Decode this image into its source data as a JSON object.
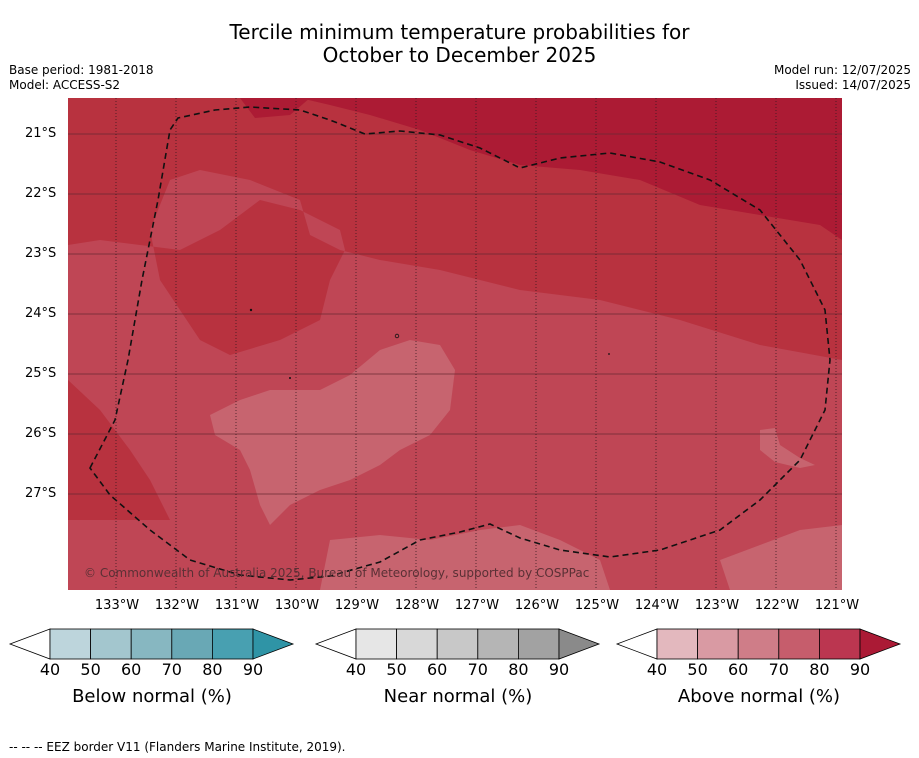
{
  "title_line1": "Tercile minimum temperature probabilities for",
  "title_line2": "October to December 2025",
  "base_period": "Base period: 1981-2018",
  "model": "Model: ACCESS-S2",
  "model_run": "Model run: 12/07/2025",
  "issued": "Issued: 14/07/2025",
  "copyright": "© Commonwealth of Australia 2025, Bureau of Meteorology, supported by COSPPac",
  "lat_labels": [
    "21°S",
    "22°S",
    "23°S",
    "24°S",
    "25°S",
    "26°S",
    "27°S"
  ],
  "lon_labels": [
    "133°W",
    "132°W",
    "131°W",
    "130°W",
    "129°W",
    "128°W",
    "127°W",
    "126°W",
    "125°W",
    "124°W",
    "123°W",
    "122°W",
    "121°W"
  ],
  "colorbars": [
    {
      "label": "Below normal (%)",
      "ticks": [
        "40",
        "50",
        "60",
        "70",
        "80",
        "90"
      ],
      "colors": [
        "#bdd5dc",
        "#a3c6ce",
        "#87b7c1",
        "#69a8b5",
        "#48a0b1",
        "#2f94a6"
      ]
    },
    {
      "label": "Near normal (%)",
      "ticks": [
        "40",
        "50",
        "60",
        "70",
        "80",
        "90"
      ],
      "colors": [
        "#e6e6e6",
        "#d8d8d8",
        "#c8c8c8",
        "#b5b5b5",
        "#a2a2a2",
        "#8a8a8a"
      ]
    },
    {
      "label": "Above normal (%)",
      "ticks": [
        "40",
        "50",
        "60",
        "70",
        "80",
        "90"
      ],
      "colors": [
        "#e3b8be",
        "#d99aa3",
        "#cf7d88",
        "#c65d6c",
        "#bb3650",
        "#ab1a35"
      ]
    }
  ],
  "footer": "--  --  -- EEZ border V11 (Flanders Marine Institute, 2019).",
  "map_colors": {
    "level_60": "#c7646f",
    "level_70": "#bf4655",
    "level_80": "#b8323f",
    "level_90": "#ac1b34"
  }
}
